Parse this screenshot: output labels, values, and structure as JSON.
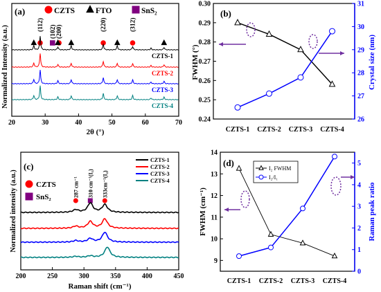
{
  "colors": {
    "black": "#000000",
    "red": "#ff0000",
    "blue": "#0000ff",
    "teal": "#008080",
    "purple": "#800080",
    "frame": "#7030a0"
  },
  "chart_data": [
    {
      "id": "a",
      "panel_label": "(a)",
      "type": "line",
      "xlabel": "2θ (°)",
      "ylabel": "Normalized Intensity (a.u.)",
      "xlim": [
        20,
        70
      ],
      "xticks": [
        20,
        30,
        40,
        50,
        60,
        70
      ],
      "legend": [
        {
          "symbol": "circle",
          "color": "#ff0000",
          "label": "CZTS"
        },
        {
          "symbol": "triangle",
          "color": "#000000",
          "label": "FTO"
        },
        {
          "symbol": "square",
          "color": "#800080",
          "label": "SnS₂"
        }
      ],
      "peak_labels": [
        {
          "x": 28.5,
          "label": "(112)",
          "marker": "circle"
        },
        {
          "x": 32.2,
          "label": "(102)",
          "marker": "square"
        },
        {
          "x": 33.1,
          "label": "(200)",
          "marker": "circle"
        },
        {
          "x": 47.4,
          "label": "(220)",
          "marker": "circle"
        },
        {
          "x": 56.2,
          "label": "(312)",
          "marker": "circle"
        }
      ],
      "fto_peaks": [
        26.6,
        33.8,
        37.8,
        51.6,
        65.6
      ],
      "series": [
        {
          "name": "CZTS-1",
          "color": "#000000",
          "peaks": [
            [
              26.6,
              0.3
            ],
            [
              28.5,
              1.0
            ],
            [
              33.8,
              0.22
            ],
            [
              37.8,
              0.3
            ],
            [
              47.4,
              0.4
            ],
            [
              51.6,
              0.3
            ],
            [
              56.2,
              0.25
            ],
            [
              61.7,
              0.12
            ],
            [
              65.6,
              0.18
            ]
          ]
        },
        {
          "name": "CZTS-2",
          "color": "#ff0000",
          "peaks": [
            [
              26.6,
              0.3
            ],
            [
              28.5,
              1.0
            ],
            [
              33.8,
              0.2
            ],
            [
              37.8,
              0.28
            ],
            [
              47.4,
              0.42
            ],
            [
              51.6,
              0.28
            ],
            [
              56.2,
              0.26
            ],
            [
              61.7,
              0.12
            ],
            [
              65.6,
              0.18
            ]
          ]
        },
        {
          "name": "CZTS-3",
          "color": "#0000ff",
          "peaks": [
            [
              26.6,
              0.32
            ],
            [
              28.5,
              1.0
            ],
            [
              33.8,
              0.22
            ],
            [
              37.8,
              0.3
            ],
            [
              47.4,
              0.45
            ],
            [
              51.6,
              0.3
            ],
            [
              56.2,
              0.28
            ],
            [
              61.7,
              0.12
            ],
            [
              65.6,
              0.18
            ]
          ]
        },
        {
          "name": "CZTS-4",
          "color": "#008080",
          "peaks": [
            [
              26.6,
              0.3
            ],
            [
              28.5,
              1.0
            ],
            [
              33.8,
              0.2
            ],
            [
              37.8,
              0.28
            ],
            [
              47.4,
              0.45
            ],
            [
              51.6,
              0.28
            ],
            [
              56.2,
              0.3
            ],
            [
              61.7,
              0.12
            ],
            [
              65.6,
              0.18
            ]
          ]
        }
      ]
    },
    {
      "id": "b",
      "panel_label": "(b)",
      "type": "line",
      "categories": [
        "CZTS-1",
        "CZTS-2",
        "CZTS-3",
        "CZTS-4"
      ],
      "ylabel": "FWHM (°)",
      "y2label": "Crystal size (nm)",
      "ylim": [
        0.24,
        0.3
      ],
      "yticks": [
        0.24,
        0.25,
        0.26,
        0.27,
        0.28,
        0.29,
        0.3
      ],
      "y2lim": [
        26,
        31
      ],
      "y2ticks": [
        26,
        27,
        28,
        29,
        30,
        31
      ],
      "series": [
        {
          "axis": "left",
          "color": "#000000",
          "marker": "triangle",
          "values": [
            0.29,
            0.284,
            0.276,
            0.258
          ]
        },
        {
          "axis": "right",
          "color": "#0000ff",
          "marker": "circle",
          "values": [
            26.5,
            27.1,
            27.8,
            29.8
          ]
        }
      ]
    },
    {
      "id": "c",
      "panel_label": "(c)",
      "type": "line",
      "xlabel": "Raman shift (cm⁻¹)",
      "ylabel": "Normalized intensity (a.u.)",
      "xlim": [
        200,
        450
      ],
      "xticks": [
        200,
        250,
        300,
        350,
        400,
        450
      ],
      "legend_markers": [
        {
          "symbol": "circle",
          "color": "#ff0000",
          "label": "CZTS"
        },
        {
          "symbol": "square",
          "color": "#800080",
          "label": "SnS₂"
        }
      ],
      "peak_labels": [
        {
          "x": 287,
          "label": "287 cm⁻¹",
          "marker": "circle"
        },
        {
          "x": 310,
          "label": "310 cm⁻¹(I₁)",
          "marker": "square"
        },
        {
          "x": 333,
          "label": "333cm⁻¹(I₂)",
          "marker": "circle"
        }
      ],
      "series": [
        {
          "name": "CZTS-1",
          "color": "#000000",
          "peaks": [
            [
              287,
              0.25
            ],
            [
              310,
              0.9
            ],
            [
              333,
              0.75
            ]
          ]
        },
        {
          "name": "CZTS-2",
          "color": "#ff0000",
          "peaks": [
            [
              287,
              0.2
            ],
            [
              310,
              0.65
            ],
            [
              333,
              0.9
            ]
          ]
        },
        {
          "name": "CZTS-3",
          "color": "#0000ff",
          "peaks": [
            [
              287,
              0.15
            ],
            [
              310,
              0.35
            ],
            [
              333,
              0.95
            ]
          ]
        },
        {
          "name": "CZTS-4",
          "color": "#008080",
          "peaks": [
            [
              287,
              0.1
            ],
            [
              310,
              0.15
            ],
            [
              337,
              1.0
            ]
          ]
        }
      ]
    },
    {
      "id": "d",
      "panel_label": "(d)",
      "type": "line",
      "categories": [
        "CZTS-1",
        "CZTS-2",
        "CZTS-3",
        "CZTS-4"
      ],
      "ylabel": "FWHM (cm⁻¹)",
      "y2label": "Raman peak ratio",
      "ylim": [
        8.5,
        14
      ],
      "yticks": [
        9,
        10,
        11,
        12,
        13,
        14
      ],
      "y2lim": [
        0,
        5.5
      ],
      "y2ticks": [
        0,
        1,
        2,
        3,
        4,
        5
      ],
      "series": [
        {
          "name": "I₂ FWHM",
          "axis": "left",
          "color": "#000000",
          "marker": "triangle",
          "values": [
            13.25,
            10.2,
            9.8,
            9.2
          ]
        },
        {
          "name": "I₂/I₁",
          "axis": "right",
          "color": "#0000ff",
          "marker": "circle",
          "values": [
            0.7,
            1.1,
            2.9,
            5.3
          ]
        }
      ]
    }
  ]
}
